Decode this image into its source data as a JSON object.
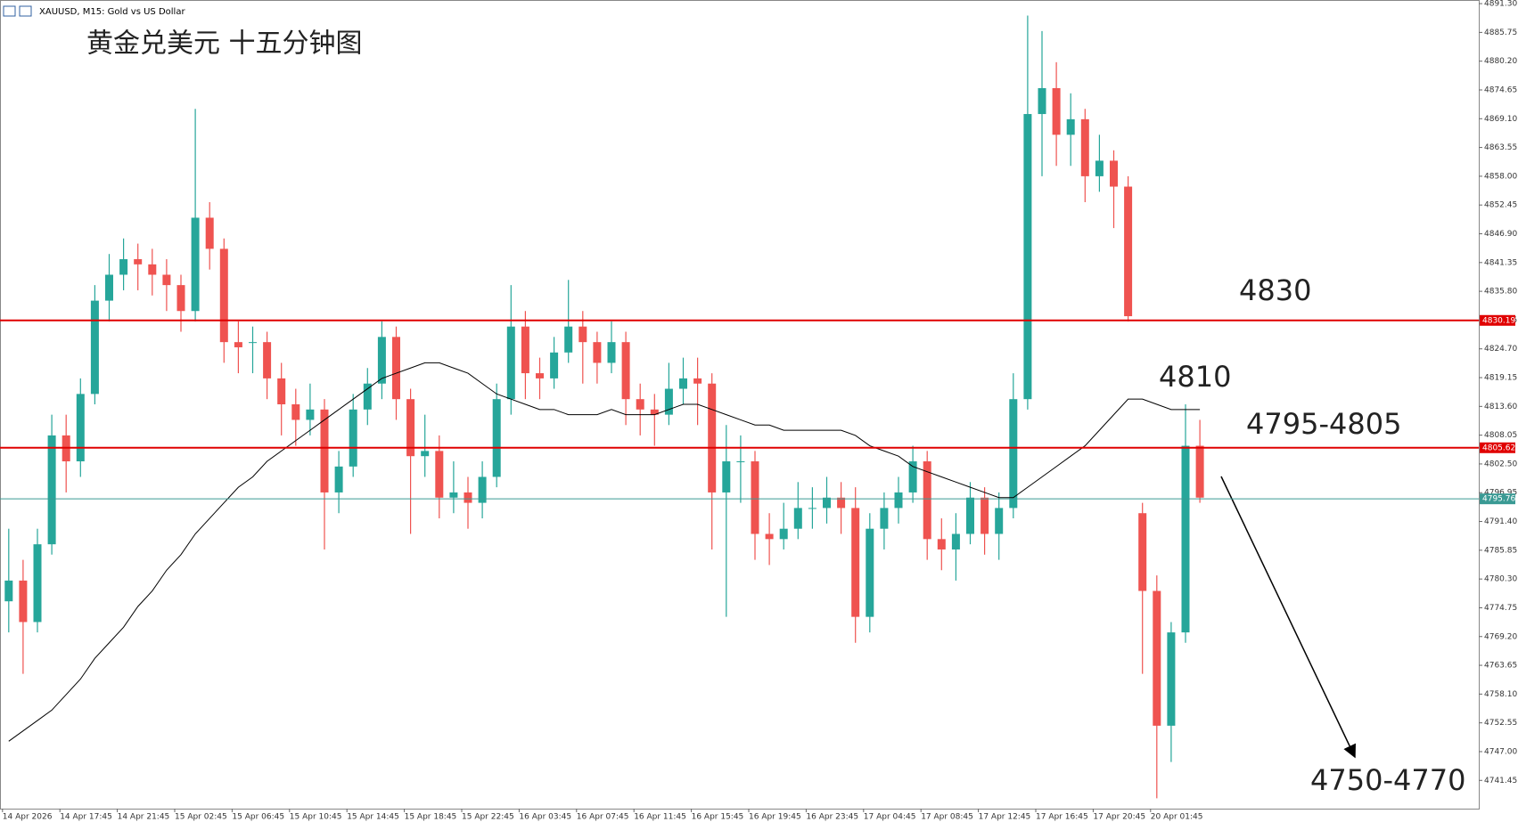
{
  "chart_data": {
    "type": "candlestick",
    "title": "XAUUSD, M15:  Gold vs US Dollar",
    "subtitle": "黄金兑美元 十五分钟图",
    "categories": [
      "14 Apr 2026",
      null,
      null,
      null,
      "14 Apr 17:45",
      null,
      null,
      null,
      "14 Apr 21:45",
      null,
      null,
      null,
      "15 Apr 02:45",
      null,
      null,
      null,
      "15 Apr 06:45",
      null,
      null,
      null,
      "15 Apr 10:45",
      null,
      null,
      null,
      "15 Apr 14:45",
      null,
      null,
      null,
      "15 Apr 18:45",
      null,
      null,
      null,
      "15 Apr 22:45",
      null,
      null,
      null,
      "16 Apr 03:45",
      null,
      null,
      null,
      "16 Apr 07:45",
      null,
      null,
      null,
      "16 Apr 11:45",
      null,
      null,
      null,
      "16 Apr 15:45",
      null,
      null,
      null,
      "16 Apr 19:45",
      null,
      null,
      null,
      "16 Apr 23:45",
      null,
      null,
      null,
      "17 Apr 04:45",
      null,
      null,
      null,
      "17 Apr 08:45",
      null,
      null,
      null,
      "17 Apr 12:45",
      null,
      null,
      null,
      "17 Apr 16:45",
      null,
      null,
      null,
      "17 Apr 20:45",
      null,
      null,
      null,
      "20 Apr 01:45",
      null,
      null,
      null
    ],
    "open": [
      4776,
      4780,
      4772,
      4787,
      4808,
      4803,
      4816,
      4834,
      4839,
      4842,
      4841,
      4839,
      4837,
      4832,
      4850,
      4844,
      4826,
      4826,
      4826,
      4819,
      4814,
      4811,
      4813,
      4797,
      4802,
      4813,
      4818,
      4827,
      4815,
      4804,
      4805,
      4796,
      4797,
      4795,
      4800,
      4815,
      4829,
      4820,
      4819,
      4824,
      4829,
      4826,
      4822,
      4826,
      4815,
      4813,
      4812,
      4817,
      4819,
      4818,
      4797,
      4803,
      4803,
      4789,
      4788,
      4790,
      4794,
      4794,
      4796,
      4794,
      4773,
      4790,
      4794,
      4797,
      4803,
      4788,
      4786,
      4789,
      4796,
      4789,
      4794,
      4815,
      4870,
      4875,
      4866,
      4869,
      4858,
      4861,
      4856,
      4793,
      4778,
      4752,
      4770,
      4806
    ],
    "high": [
      4790,
      4784,
      4790,
      4812,
      4812,
      4819,
      4837,
      4843,
      4846,
      4845,
      4844,
      4842,
      4839,
      4871,
      4853,
      4846,
      4830,
      4829,
      4828,
      4822,
      4817,
      4818,
      4815,
      4805,
      4816,
      4821,
      4830,
      4829,
      4817,
      4812,
      4808,
      4803,
      4800,
      4803,
      4818,
      4837,
      4832,
      4823,
      4827,
      4838,
      4832,
      4828,
      4830,
      4828,
      4818,
      4816,
      4822,
      4823,
      4823,
      4820,
      4810,
      4808,
      4805,
      4793,
      4795,
      4799,
      4798,
      4800,
      4799,
      4798,
      4793,
      4797,
      4800,
      4806,
      4805,
      4792,
      4793,
      4799,
      4798,
      4797,
      4820,
      4889,
      4886,
      4880,
      4874,
      4871,
      4866,
      4863,
      4858,
      4795,
      4781,
      4772,
      4814,
      4811
    ],
    "low": [
      4770,
      4762,
      4770,
      4785,
      4797,
      4800,
      4814,
      4830,
      4836,
      4836,
      4835,
      4832,
      4828,
      4830,
      4840,
      4822,
      4820,
      4820,
      4815,
      4808,
      4806,
      4808,
      4786,
      4793,
      4800,
      4810,
      4815,
      4811,
      4789,
      4800,
      4792,
      4793,
      4790,
      4792,
      4798,
      4812,
      4815,
      4815,
      4817,
      4822,
      4818,
      4818,
      4820,
      4810,
      4808,
      4806,
      4810,
      4814,
      4810,
      4786,
      4773,
      4795,
      4784,
      4783,
      4786,
      4788,
      4790,
      4791,
      4789,
      4768,
      4770,
      4786,
      4791,
      4795,
      4784,
      4782,
      4780,
      4787,
      4785,
      4784,
      4792,
      4813,
      4858,
      4860,
      4860,
      4853,
      4855,
      4848,
      4830,
      4762,
      4738,
      4745,
      4768,
      4795
    ],
    "close": [
      4780,
      4772,
      4787,
      4808,
      4803,
      4816,
      4834,
      4839,
      4842,
      4841,
      4839,
      4837,
      4832,
      4850,
      4844,
      4826,
      4825,
      4826,
      4819,
      4814,
      4811,
      4813,
      4797,
      4802,
      4813,
      4818,
      4827,
      4815,
      4804,
      4805,
      4796,
      4797,
      4795,
      4800,
      4815,
      4829,
      4820,
      4819,
      4824,
      4829,
      4826,
      4822,
      4826,
      4815,
      4813,
      4812,
      4817,
      4819,
      4818,
      4797,
      4803,
      4803,
      4789,
      4788,
      4790,
      4794,
      4794,
      4796,
      4794,
      4773,
      4790,
      4794,
      4797,
      4803,
      4788,
      4786,
      4789,
      4796,
      4789,
      4794,
      4815,
      4870,
      4875,
      4866,
      4869,
      4858,
      4861,
      4856,
      4831,
      4778,
      4752,
      4770,
      4806,
      4796
    ],
    "up_color": "#26a69a",
    "down_color": "#ef5350",
    "ma": {
      "color": "#000000",
      "values": [
        4749,
        4751,
        4753,
        4755,
        4758,
        4761,
        4765,
        4768,
        4771,
        4775,
        4778,
        4782,
        4785,
        4789,
        4792,
        4795,
        4798,
        4800,
        4803,
        4805,
        4807,
        4809,
        4811,
        4813,
        4815,
        4817,
        4819,
        4820,
        4821,
        4822,
        4822,
        4821,
        4820,
        4818,
        4816,
        4815,
        4814,
        4813,
        4813,
        4812,
        4812,
        4812,
        4813,
        4812,
        4812,
        4812,
        4813,
        4814,
        4814,
        4813,
        4812,
        4811,
        4810,
        4810,
        4809,
        4809,
        4809,
        4809,
        4809,
        4808,
        4806,
        4805,
        4804,
        4802,
        4801,
        4800,
        4799,
        4798,
        4797,
        4796,
        4796,
        4798,
        4800,
        4802,
        4804,
        4806,
        4809,
        4812,
        4815,
        4815,
        4814,
        4813,
        4813,
        4813
      ]
    },
    "hlines": [
      {
        "value": 4830.19,
        "label": "4830.19",
        "color": "#e00000"
      },
      {
        "value": 4805.62,
        "label": "4805.62",
        "color": "#e00000"
      },
      {
        "value": 4795.76,
        "label": "4795.76",
        "color": "#3a9a94"
      }
    ],
    "annotations": [
      "4830",
      "4810",
      "4795-4805",
      "4750-4770"
    ],
    "ylim": [
      4736.0,
      4892.0
    ],
    "yticks": [
      {
        "value": 4891.3,
        "label": "4891.30"
      },
      {
        "value": 4885.75,
        "label": "4885.75"
      },
      {
        "value": 4880.2,
        "label": "4880.20"
      },
      {
        "value": 4874.65,
        "label": "4874.65"
      },
      {
        "value": 4869.1,
        "label": "4869.10"
      },
      {
        "value": 4863.55,
        "label": "4863.55"
      },
      {
        "value": 4858,
        "label": "4858.00"
      },
      {
        "value": 4852.45,
        "label": "4852.45"
      },
      {
        "value": 4846.9,
        "label": "4846.90"
      },
      {
        "value": 4841.35,
        "label": "4841.35"
      },
      {
        "value": 4835.8,
        "label": "4835.80"
      },
      {
        "value": 4830.25,
        "label": "4830.25"
      },
      {
        "value": 4824.7,
        "label": "4824.70"
      },
      {
        "value": 4819.15,
        "label": "4819.15"
      },
      {
        "value": 4813.6,
        "label": "4813.60"
      },
      {
        "value": 4808.05,
        "label": "4808.05"
      },
      {
        "value": 4802.5,
        "label": "4802.50"
      },
      {
        "value": 4796.95,
        "label": "4796.95"
      },
      {
        "value": 4791.4,
        "label": "4791.40"
      },
      {
        "value": 4785.85,
        "label": "4785.85"
      },
      {
        "value": 4780.3,
        "label": "4780.30"
      },
      {
        "value": 4774.75,
        "label": "4774.75"
      },
      {
        "value": 4769.2,
        "label": "4769.20"
      },
      {
        "value": 4763.65,
        "label": "4763.65"
      },
      {
        "value": 4758.1,
        "label": "4758.10"
      },
      {
        "value": 4752.55,
        "label": "4752.55"
      },
      {
        "value": 4747,
        "label": "4747.00"
      },
      {
        "value": 4741.45,
        "label": "4741.45"
      }
    ]
  }
}
